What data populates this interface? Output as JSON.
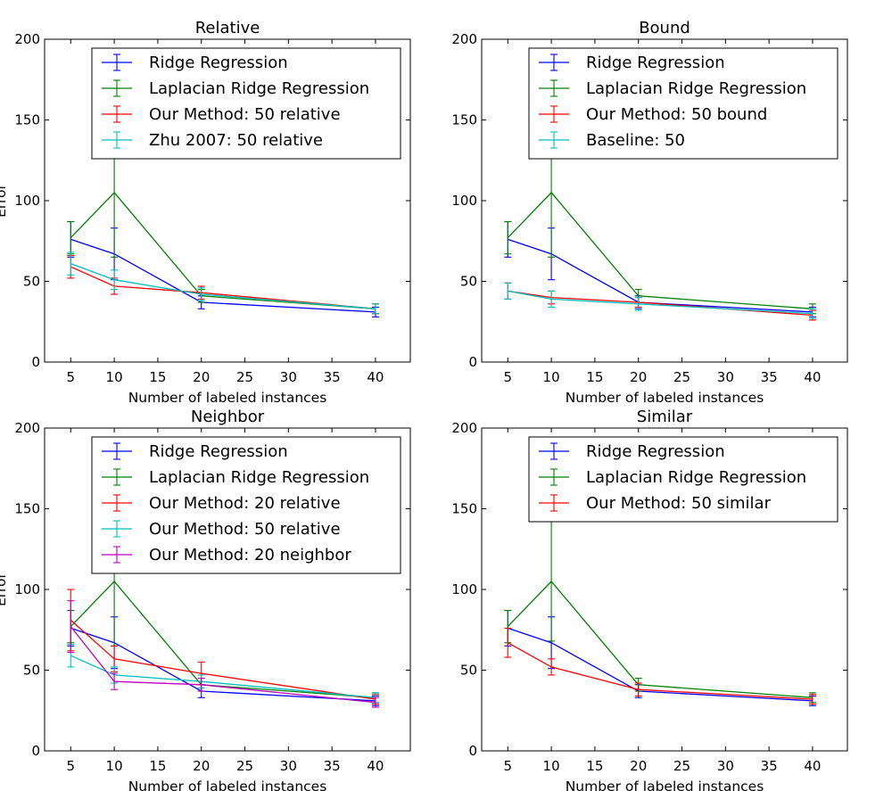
{
  "figure": {
    "colors": {
      "ridge": "#0000ff",
      "laplacian": "#008000",
      "our_primary": "#ff0000",
      "secondary": "#00bfbf",
      "magenta": "#bf00bf"
    }
  },
  "chart_data": [
    {
      "type": "line",
      "error_bars": true,
      "title": "Relative",
      "xlabel": "Number of labeled instances",
      "ylabel": "Error",
      "x": [
        5,
        10,
        20,
        40
      ],
      "xticks": [
        5,
        10,
        15,
        20,
        25,
        30,
        35,
        40
      ],
      "xlim": [
        2,
        44
      ],
      "yticks": [
        0,
        50,
        100,
        150,
        200
      ],
      "ylim": [
        0,
        200
      ],
      "grid": false,
      "legend_position": "top-right",
      "series": [
        {
          "name": "Ridge Regression",
          "color": "#0000ff",
          "values": [
            76,
            67,
            37,
            31
          ],
          "errors": [
            11,
            16,
            4,
            3
          ]
        },
        {
          "name": "Laplacian Ridge Regression",
          "color": "#008000",
          "values": [
            77,
            105,
            41,
            33
          ],
          "errors": [
            10,
            40,
            4,
            3
          ]
        },
        {
          "name": "Our Method: 50 relative",
          "color": "#ff0000",
          "values": [
            59,
            47,
            43,
            33
          ],
          "errors": [
            7,
            5,
            4,
            3
          ]
        },
        {
          "name": "Zhu 2007: 50 relative",
          "color": "#00bfbf",
          "values": [
            61,
            51,
            42,
            33
          ],
          "errors": [
            7,
            6,
            4,
            3
          ]
        }
      ]
    },
    {
      "type": "line",
      "error_bars": true,
      "title": "Bound",
      "xlabel": "Number of labeled instances",
      "ylabel": "",
      "x": [
        5,
        10,
        20,
        40
      ],
      "xticks": [
        5,
        10,
        15,
        20,
        25,
        30,
        35,
        40
      ],
      "xlim": [
        2,
        44
      ],
      "yticks": [
        0,
        50,
        100,
        150,
        200
      ],
      "ylim": [
        0,
        200
      ],
      "grid": false,
      "legend_position": "top-right",
      "series": [
        {
          "name": "Ridge Regression",
          "color": "#0000ff",
          "values": [
            76,
            67,
            37,
            31
          ],
          "errors": [
            11,
            16,
            4,
            3
          ]
        },
        {
          "name": "Laplacian Ridge Regression",
          "color": "#008000",
          "values": [
            77,
            105,
            41,
            33
          ],
          "errors": [
            10,
            40,
            4,
            3
          ]
        },
        {
          "name": "Our Method: 50 bound",
          "color": "#ff0000",
          "values": [
            44,
            40,
            37,
            29
          ],
          "errors": [
            5,
            4,
            3,
            3
          ]
        },
        {
          "name": "Baseline: 50",
          "color": "#00bfbf",
          "values": [
            44,
            39,
            36,
            30
          ],
          "errors": [
            5,
            5,
            4,
            3
          ]
        }
      ]
    },
    {
      "type": "line",
      "error_bars": true,
      "title": "Neighbor",
      "xlabel": "Number of labeled instances",
      "ylabel": "Error",
      "x": [
        5,
        10,
        20,
        40
      ],
      "xticks": [
        5,
        10,
        15,
        20,
        25,
        30,
        35,
        40
      ],
      "xlim": [
        2,
        44
      ],
      "yticks": [
        0,
        50,
        100,
        150,
        200
      ],
      "ylim": [
        0,
        200
      ],
      "grid": false,
      "legend_position": "top-right",
      "series": [
        {
          "name": "Ridge Regression",
          "color": "#0000ff",
          "values": [
            76,
            67,
            37,
            31
          ],
          "errors": [
            11,
            16,
            4,
            3
          ]
        },
        {
          "name": "Laplacian Ridge Regression",
          "color": "#008000",
          "values": [
            77,
            105,
            41,
            33
          ],
          "errors": [
            10,
            40,
            4,
            3
          ]
        },
        {
          "name": "Our Method: 20 relative",
          "color": "#ff0000",
          "values": [
            81,
            57,
            48,
            32
          ],
          "errors": [
            19,
            8,
            7,
            3
          ]
        },
        {
          "name": "Our Method: 50 relative",
          "color": "#00bfbf",
          "values": [
            59,
            47,
            43,
            33
          ],
          "errors": [
            7,
            5,
            4,
            3
          ]
        },
        {
          "name": "Our Method: 20 neighbor",
          "color": "#bf00bf",
          "values": [
            77,
            43,
            41,
            30
          ],
          "errors": [
            16,
            5,
            4,
            3
          ]
        }
      ]
    },
    {
      "type": "line",
      "error_bars": true,
      "title": "Similar",
      "xlabel": "Number of labeled instances",
      "ylabel": "",
      "x": [
        5,
        10,
        20,
        40
      ],
      "xticks": [
        5,
        10,
        15,
        20,
        25,
        30,
        35,
        40
      ],
      "xlim": [
        2,
        44
      ],
      "yticks": [
        0,
        50,
        100,
        150,
        200
      ],
      "ylim": [
        0,
        200
      ],
      "grid": false,
      "legend_position": "top-right",
      "series": [
        {
          "name": "Ridge Regression",
          "color": "#0000ff",
          "values": [
            76,
            67,
            37,
            31
          ],
          "errors": [
            11,
            16,
            4,
            3
          ]
        },
        {
          "name": "Laplacian Ridge Regression",
          "color": "#008000",
          "values": [
            77,
            105,
            41,
            33
          ],
          "errors": [
            10,
            37,
            4,
            3
          ]
        },
        {
          "name": "Our Method: 50 similar",
          "color": "#ff0000",
          "values": [
            67,
            52,
            38,
            32
          ],
          "errors": [
            9,
            5,
            4,
            3
          ]
        }
      ]
    }
  ]
}
